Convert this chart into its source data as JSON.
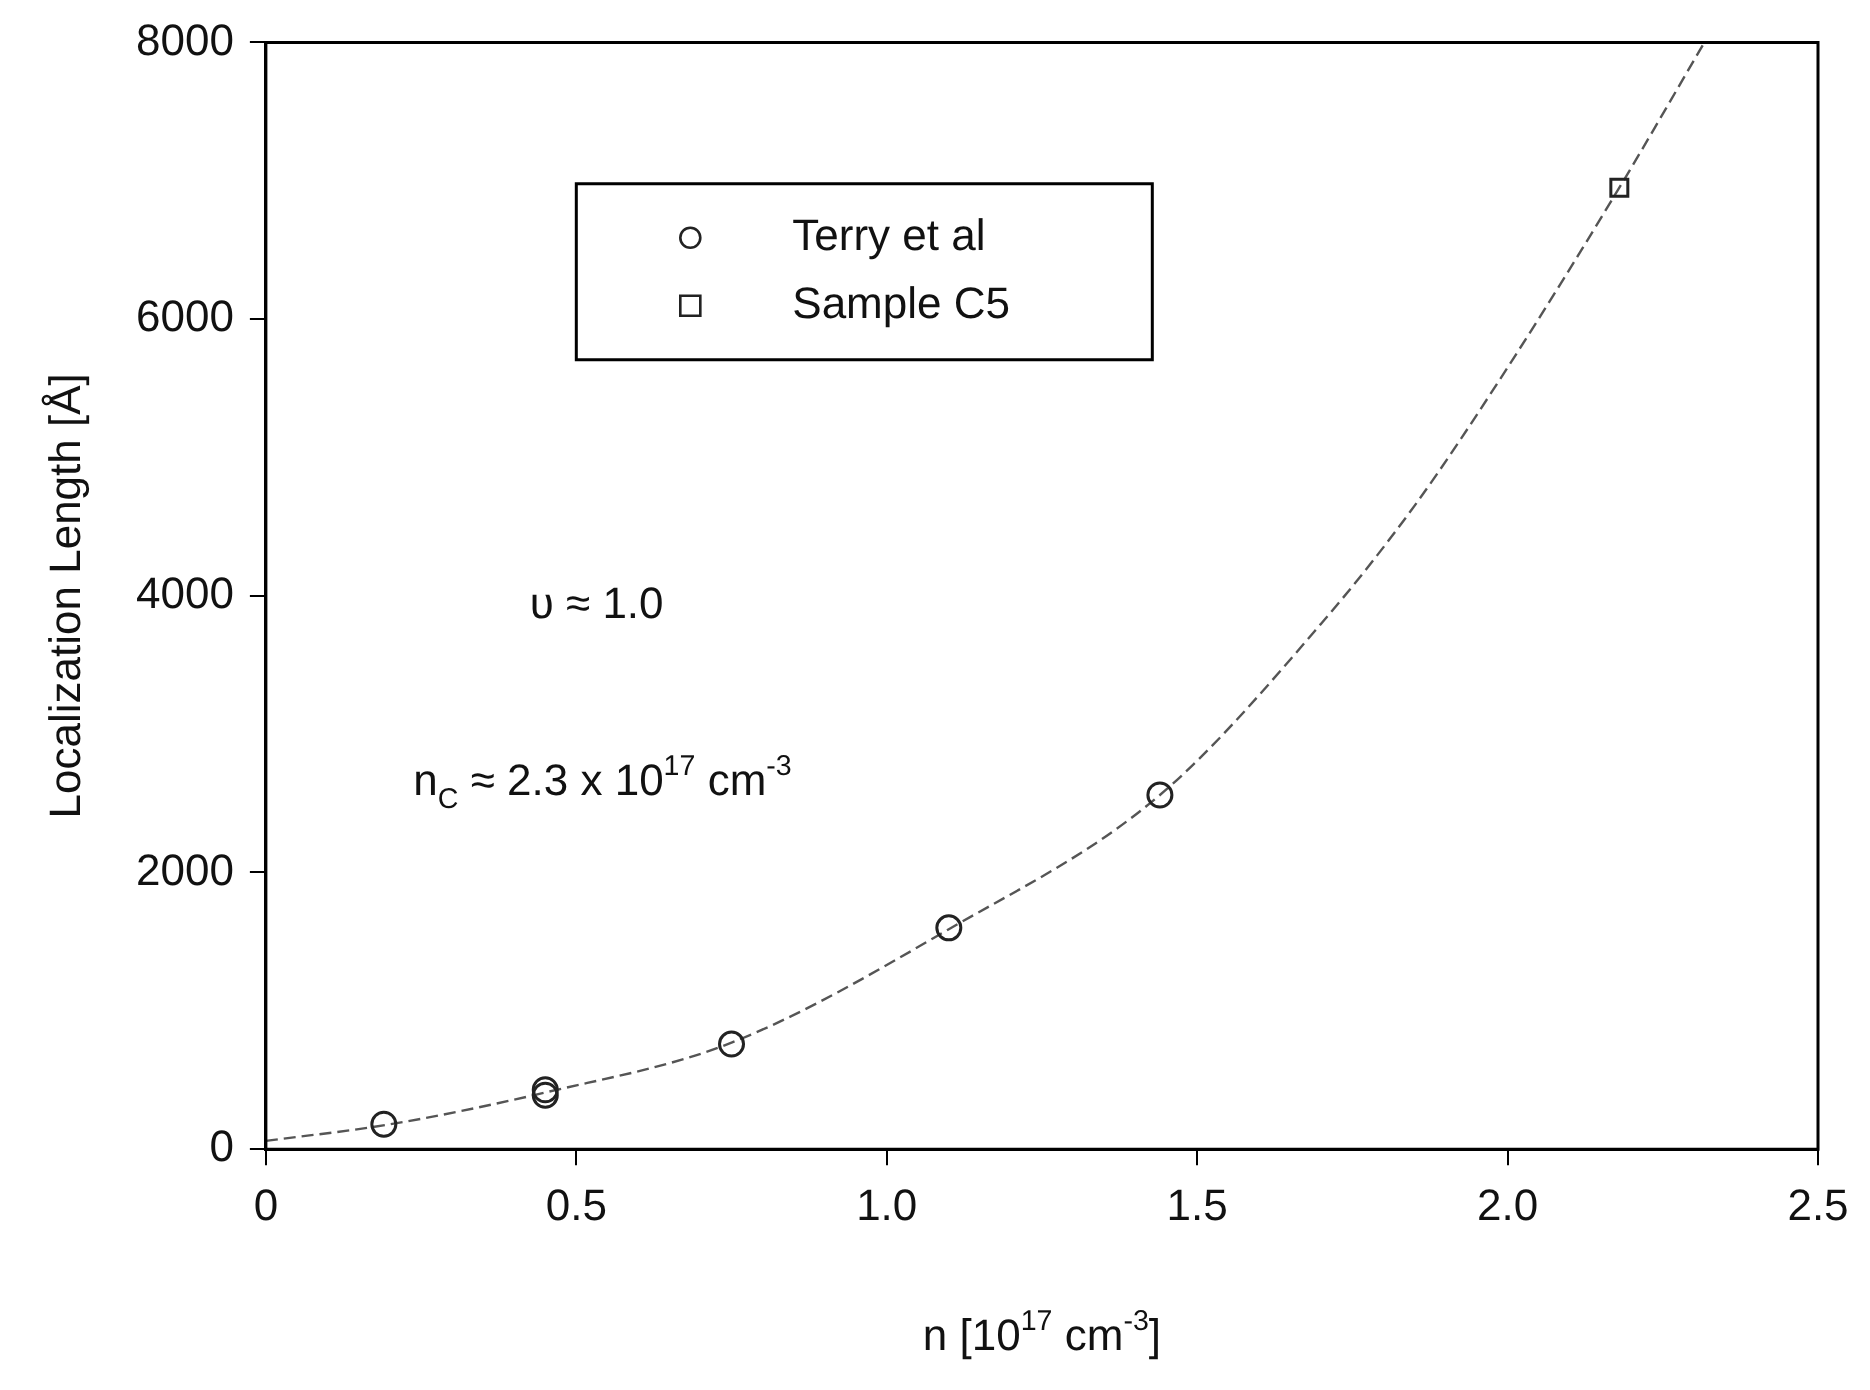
{
  "chart_data": {
    "type": "scatter",
    "xlabel": "n [10$^{17}$ cm$^{-3}$]",
    "ylabel": "Localization Length [Å]",
    "annotations": [
      "υ ≈ 1.0",
      "n$_{C}$ ≈ 2.3 x 10$^{17}$ cm$^{-3}$"
    ],
    "xlim": [
      0,
      2.5
    ],
    "xticks": [
      {
        "value": 0,
        "label": "0"
      },
      0.5,
      {
        "value": 1,
        "label": "1.0"
      },
      1.5,
      {
        "value": 2,
        "label": "2.0"
      },
      2.5
    ],
    "ylim": [
      0,
      8000
    ],
    "yticks": [
      0,
      2000,
      4000,
      6000,
      8000
    ],
    "grid": false,
    "legend": "top",
    "series": [
      {
        "name": "Terry et al",
        "color": "#222222",
        "marker": "circle",
        "x": [
          0.19,
          0.45,
          0.45,
          0.75,
          1.1,
          1.44
        ],
        "values": [
          180,
          430,
          390,
          760,
          1600,
          2560
        ]
      },
      {
        "name": "Sample C5",
        "color": "#222222",
        "marker": "square",
        "x": [
          2.18
        ],
        "values": [
          6950
        ]
      },
      {
        "type": "line",
        "color": "#555555",
        "line_style": "dashed",
        "marker": "none",
        "x": [
          0,
          0.2,
          0.45,
          0.75,
          1.1,
          1.44,
          1.7,
          1.85,
          2.0,
          2.18,
          2.317
        ],
        "values": [
          60,
          180,
          410,
          770,
          1590,
          2560,
          3800,
          4650,
          5650,
          6950,
          8000
        ]
      }
    ]
  }
}
